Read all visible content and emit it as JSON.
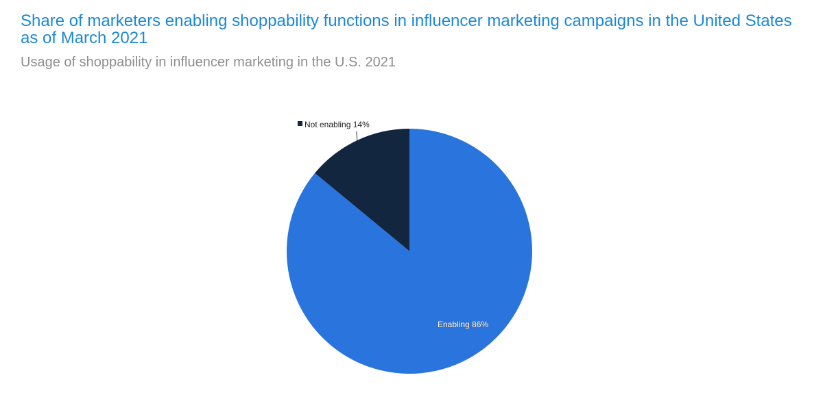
{
  "header": {
    "title": "Share of marketers enabling shoppability functions in influencer marketing campaigns in the United States as of March 2021",
    "subtitle": "Usage of shoppability in influencer marketing in the U.S. 2021"
  },
  "chart_data": {
    "type": "pie",
    "slices": [
      {
        "label": "Not enabling 14%",
        "name": "Not enabling",
        "value": 14,
        "color": "#13263f"
      },
      {
        "label": "Enabling 86%",
        "name": "Enabling",
        "value": 86,
        "color": "#2a74dd"
      }
    ],
    "start": "12 o'clock",
    "direction": "counterclockwise",
    "legend": "none"
  }
}
